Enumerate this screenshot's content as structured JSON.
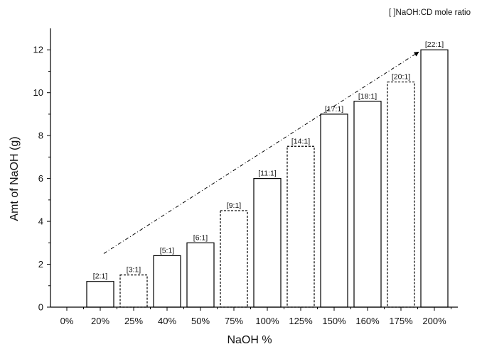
{
  "chart_data": {
    "type": "bar",
    "categories": [
      "0%",
      "20%",
      "25%",
      "40%",
      "50%",
      "75%",
      "100%",
      "125%",
      "150%",
      "160%",
      "175%",
      "200%"
    ],
    "values": [
      0,
      1.2,
      1.5,
      2.4,
      3.0,
      4.5,
      6.0,
      7.5,
      9.0,
      9.6,
      10.5,
      12.0
    ],
    "data_labels": [
      "",
      "[2:1]",
      "[3:1]",
      "[5:1]",
      "[6:1]",
      "[9:1]",
      "[11:1]",
      "[14:1]",
      "[17:1]",
      "[18:1]",
      "[20:1]",
      "[22:1]"
    ],
    "dashed_bars": [
      "25%",
      "75%",
      "125%",
      "175%"
    ],
    "xlabel": "NaOH %",
    "ylabel": "Amt of NaOH (g)",
    "ylim": [
      0,
      13
    ],
    "yticks": [
      0,
      2,
      4,
      6,
      8,
      10,
      12
    ],
    "annotation": "[ ]NaOH:CD mole ratio",
    "trend_arrow": true,
    "grid": false,
    "colors": {
      "bar_fill": "#ffffff",
      "bar_stroke": "#000000",
      "axis": "#000000"
    }
  }
}
